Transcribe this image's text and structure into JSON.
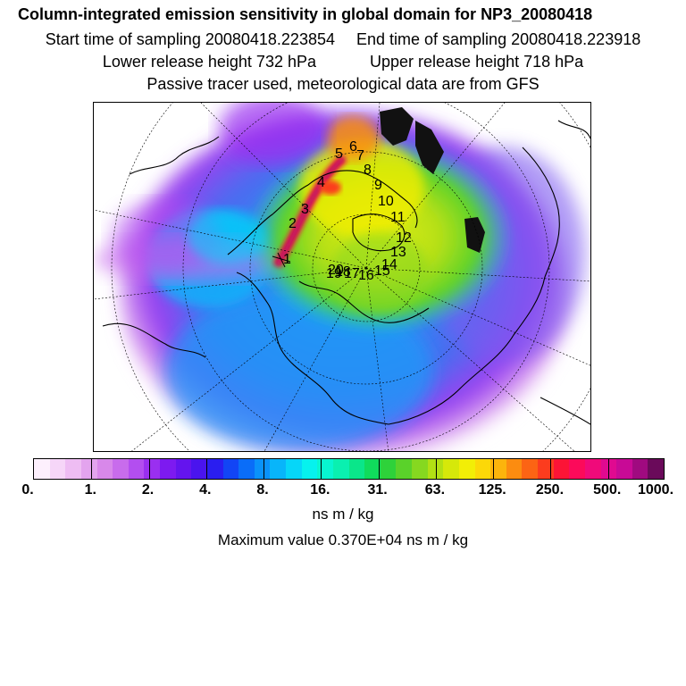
{
  "header": {
    "title": "Column-integrated emission sensitivity in global domain for NP3_20080418",
    "start_label": "Start time of sampling 20080418.223854",
    "end_label": "End time of sampling 20080418.223918",
    "lower_label": "Lower release height  732 hPa",
    "upper_label": "Upper release height  718 hPa",
    "tracer_note": "Passive tracer used, meteorological data are from GFS"
  },
  "map": {
    "projection": "north polar stereographic",
    "trajectory_points": [
      "1",
      "2",
      "3",
      "4",
      "5",
      "6",
      "7",
      "8",
      "9",
      "10",
      "11",
      "12",
      "13",
      "14",
      "15",
      "16",
      "17",
      "18",
      "19",
      "20"
    ]
  },
  "colorbar": {
    "colors": [
      "#fdf0fd",
      "#f6d6f8",
      "#eebdf3",
      "#e3a4ee",
      "#d888ea",
      "#c86cec",
      "#b34ef0",
      "#9a2ff0",
      "#7d1af0",
      "#6414ee",
      "#4a14ee",
      "#2a1ef0",
      "#1245f5",
      "#0a6df8",
      "#0a92fa",
      "#08b5fa",
      "#06d6f8",
      "#06f2ee",
      "#08f5d0",
      "#0af0b0",
      "#0ae68a",
      "#10dc5c",
      "#2ed23a",
      "#5ad22a",
      "#86d820",
      "#b2e014",
      "#d6e80a",
      "#f2ee06",
      "#fcd808",
      "#fcb40c",
      "#fc8c10",
      "#fc6414",
      "#fc3c1e",
      "#fc1436",
      "#fc0a5a",
      "#f00a7a",
      "#e00a90",
      "#c80a96",
      "#a00a80",
      "#6a0a5a"
    ],
    "tick_labels": [
      "0.",
      "1.",
      "2.",
      "4.",
      "8.",
      "16.",
      "31.",
      "63.",
      "125.",
      "250.",
      "500.",
      "1000."
    ],
    "unit": "ns m / kg"
  },
  "footer": {
    "max_value_text": "Maximum value  0.370E+04 ns m / kg"
  }
}
